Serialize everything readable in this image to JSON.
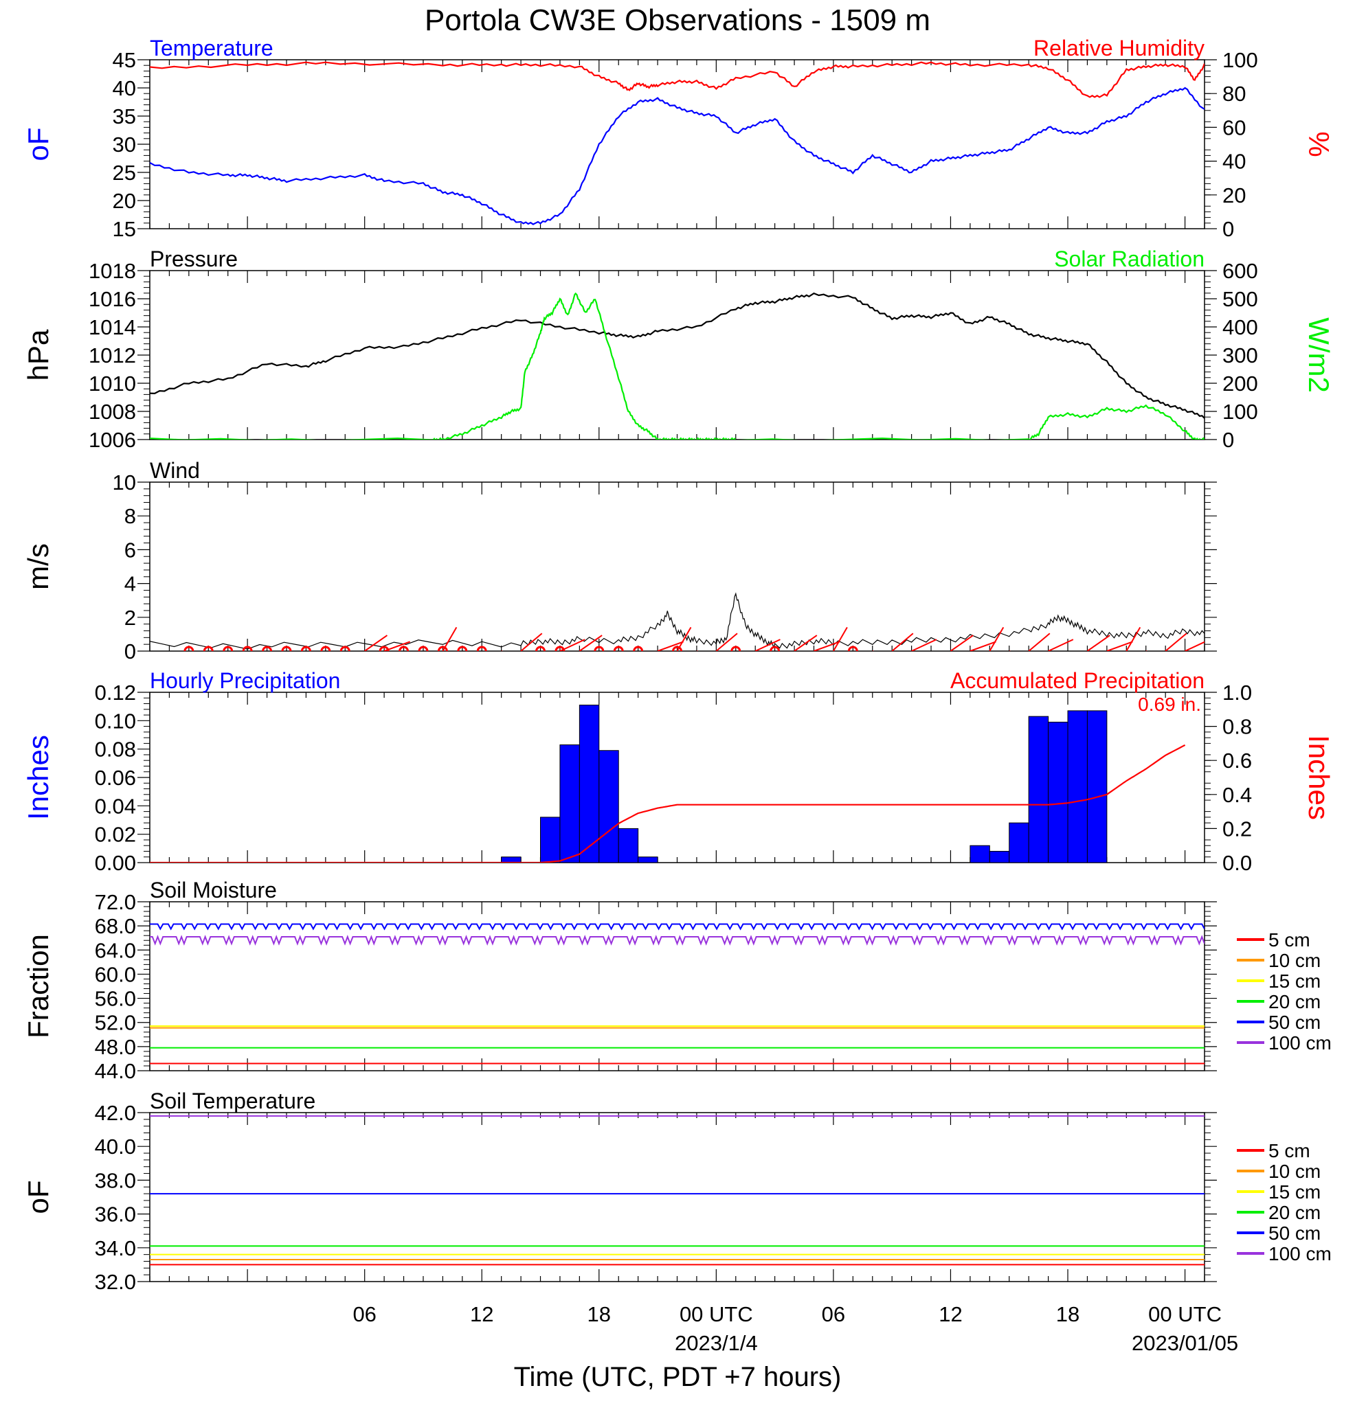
{
  "title": "Portola CW3E Observations - 1509 m",
  "xlabel": "Time (UTC, PDT +7 hours)",
  "x_ticks": [
    {
      "hour": 6,
      "label": "06"
    },
    {
      "hour": 12,
      "label": "12"
    },
    {
      "hour": 18,
      "label": "18"
    },
    {
      "hour": 24,
      "label": "00 UTC",
      "sub": "2023/1/4"
    },
    {
      "hour": 30,
      "label": "06"
    },
    {
      "hour": 36,
      "label": "12"
    },
    {
      "hour": 42,
      "label": "18"
    },
    {
      "hour": 48,
      "label": "00 UTC",
      "sub": "2023/01/05"
    }
  ],
  "colors": {
    "blue": "#0000ff",
    "red": "#ff0000",
    "green": "#00ee00",
    "black": "#000000",
    "orange": "#ff9900",
    "yellow": "#ffff00",
    "purple": "#9933dd"
  },
  "chart_data": [
    {
      "type": "line",
      "title_left": "Temperature",
      "title_right": "Relative Humidity",
      "ylabel_left": "oF",
      "ylabel_right": "%",
      "ylim_left": [
        15,
        45
      ],
      "ylim_right": [
        0,
        100
      ],
      "yticks_left": [
        "15",
        "20",
        "25",
        "30",
        "35",
        "40",
        "45"
      ],
      "yticks_right": [
        "0",
        "20",
        "40",
        "60",
        "80",
        "100"
      ],
      "x_range_hours": [
        -5,
        49
      ],
      "series": [
        {
          "name": "Temperature",
          "axis": "left",
          "color": "#0000ff",
          "x": [
            -5,
            -3,
            -1,
            0,
            1,
            2,
            4,
            6,
            7,
            9,
            10,
            11,
            12,
            13,
            14,
            15,
            16,
            17,
            18,
            19,
            20,
            21,
            22,
            23,
            24,
            25,
            26,
            27,
            28,
            29,
            30,
            31,
            32,
            33,
            34,
            35,
            36,
            37,
            38,
            39,
            40,
            41,
            42,
            43,
            44,
            45,
            46,
            47,
            48,
            49
          ],
          "y": [
            26.5,
            25,
            24.5,
            24.5,
            24,
            23.5,
            24,
            24.5,
            23.5,
            23,
            21.5,
            21,
            19.5,
            17.5,
            16,
            16,
            17.5,
            22,
            30,
            35,
            37.5,
            38,
            36.5,
            35.5,
            35,
            32,
            33.5,
            34.5,
            30.5,
            28,
            26.5,
            25,
            28,
            26.5,
            25,
            27,
            27.5,
            28,
            28.5,
            29,
            31,
            33,
            32,
            32,
            34,
            35,
            37.5,
            39,
            40,
            36
          ]
        },
        {
          "name": "Relative Humidity",
          "axis": "right",
          "color": "#ff0000",
          "x": [
            -5,
            0,
            4,
            10,
            13,
            15,
            17,
            18,
            19,
            19.5,
            20,
            20.5,
            21,
            22,
            23,
            24,
            25,
            27,
            28,
            29,
            30,
            31,
            33,
            35,
            37,
            40,
            41,
            42,
            43,
            44,
            45,
            46,
            47,
            48,
            48.5,
            49
          ],
          "y": [
            95,
            97,
            98,
            97,
            97,
            97,
            96,
            90,
            86,
            82,
            86,
            84,
            85,
            87,
            87,
            83,
            89,
            93,
            84,
            93,
            96,
            96,
            97,
            98,
            97,
            97,
            95,
            88,
            78,
            79,
            94,
            96,
            97,
            96,
            88,
            97
          ]
        }
      ]
    },
    {
      "type": "line",
      "title_left": "Pressure",
      "title_right": "Solar Radiation",
      "ylabel_left": "hPa",
      "ylabel_right": "W/m2",
      "ylim_left": [
        1006,
        1018
      ],
      "ylim_right": [
        0,
        600
      ],
      "yticks_left": [
        "1006",
        "1008",
        "1010",
        "1012",
        "1014",
        "1016",
        "1018"
      ],
      "yticks_right": [
        "0",
        "100",
        "200",
        "300",
        "400",
        "500",
        "600"
      ],
      "x_range_hours": [
        -5,
        49
      ],
      "series": [
        {
          "name": "Pressure",
          "axis": "left",
          "color": "#000000",
          "x": [
            -5,
            -3,
            -1,
            1,
            3,
            4,
            6,
            8,
            10,
            12,
            14,
            16,
            18,
            19,
            20,
            21,
            23,
            25,
            26,
            27,
            28,
            29,
            31,
            32,
            33,
            34,
            35,
            36,
            37,
            38,
            39,
            40,
            41,
            42,
            43,
            44,
            45,
            46,
            47,
            48,
            49
          ],
          "y": [
            1009.2,
            1010,
            1010.3,
            1011.4,
            1011.2,
            1011.6,
            1012.5,
            1012.6,
            1013.2,
            1013.9,
            1014.5,
            1014.0,
            1013.6,
            1013.4,
            1013.3,
            1013.7,
            1014,
            1015.3,
            1015.7,
            1015.8,
            1016.1,
            1016.3,
            1016.1,
            1015.3,
            1014.6,
            1014.8,
            1014.7,
            1015,
            1014.2,
            1014.7,
            1014.2,
            1013.5,
            1013.2,
            1013.0,
            1012.8,
            1011.5,
            1010,
            1009,
            1008.5,
            1008.1,
            1007.6
          ]
        },
        {
          "name": "Solar Radiation",
          "axis": "right",
          "color": "#00ee00",
          "x": [
            -5,
            9.5,
            10,
            11,
            12,
            13,
            13.5,
            14,
            14.2,
            14.6,
            15,
            15.2,
            15.6,
            16,
            16.4,
            16.8,
            17.3,
            17.8,
            18.3,
            19,
            19.5,
            20,
            20.5,
            21,
            21.5,
            22,
            22.5,
            23,
            23.5,
            24,
            24.5,
            25,
            40,
            40.5,
            41,
            42,
            43,
            44,
            45,
            46,
            47,
            48,
            48.5,
            49
          ],
          "y": [
            0,
            0,
            0,
            20,
            50,
            80,
            100,
            110,
            240,
            300,
            380,
            430,
            450,
            500,
            440,
            520,
            450,
            500,
            380,
            220,
            100,
            50,
            30,
            0,
            0,
            0,
            0,
            0,
            0,
            0,
            0,
            0,
            0,
            20,
            80,
            90,
            80,
            110,
            100,
            120,
            90,
            30,
            0,
            0
          ]
        }
      ]
    },
    {
      "type": "line",
      "title_left": "Wind",
      "ylabel_left": "m/s",
      "ylim_left": [
        0,
        10
      ],
      "yticks_left": [
        "0",
        "2",
        "4",
        "6",
        "8",
        "10"
      ],
      "x_range_hours": [
        -5,
        49
      ],
      "series": [
        {
          "name": "Wind",
          "axis": "left",
          "color": "#000000",
          "x": [
            -5,
            0,
            5,
            10,
            14,
            15,
            16,
            17,
            19,
            20,
            21,
            21.5,
            22,
            22.5,
            23,
            24,
            24.5,
            25,
            25.5,
            26,
            26.5,
            27,
            28,
            29,
            30,
            32,
            34,
            36,
            38,
            40,
            41,
            41.5,
            42,
            42.5,
            43,
            44,
            45,
            46,
            47,
            48,
            49
          ],
          "y": [
            0.4,
            0.3,
            0.4,
            0.5,
            0.4,
            0.6,
            0.5,
            0.7,
            0.6,
            0.8,
            1.5,
            2.2,
            1.2,
            0.8,
            0.6,
            0.5,
            0.7,
            3.4,
            1.5,
            1.0,
            0.6,
            0.3,
            0.4,
            0.6,
            0.5,
            0.5,
            0.6,
            0.7,
            0.9,
            1.2,
            1.6,
            2.0,
            1.8,
            1.5,
            1.2,
            1.0,
            0.9,
            1.1,
            0.9,
            1.2,
            1.0
          ]
        }
      ],
      "calm_hours": [
        -3,
        -2,
        -1,
        0,
        1,
        2,
        3,
        4,
        5,
        7,
        8,
        9,
        10,
        11,
        12,
        15,
        16,
        18,
        19,
        20,
        22,
        25,
        27,
        31
      ],
      "barb_hours": [
        6,
        7,
        10,
        13,
        14,
        16,
        17,
        21,
        22,
        23,
        24,
        26,
        28,
        29,
        30,
        32,
        33,
        34,
        36,
        37,
        38,
        39,
        40,
        41,
        43,
        44,
        45,
        46,
        47,
        48
      ]
    },
    {
      "type": "bar",
      "title_left": "Hourly Precipitation",
      "title_right": "Accumulated Precipitation",
      "ylabel_left": "Inches",
      "ylabel_right": "Inches",
      "ylim_left": [
        0,
        0.12
      ],
      "ylim_right": [
        0,
        1.0
      ],
      "yticks_left": [
        "0.00",
        "0.02",
        "0.04",
        "0.06",
        "0.08",
        "0.10",
        "0.12"
      ],
      "yticks_right": [
        "0.0",
        "0.2",
        "0.4",
        "0.6",
        "0.8",
        "1.0"
      ],
      "annotation": "0.69 in.",
      "x_range_hours": [
        -5,
        49
      ],
      "bars": {
        "color": "#0000ff",
        "start_hours": [
          13,
          15,
          16,
          17,
          18,
          19,
          20,
          37,
          38,
          39,
          40,
          41,
          42,
          43
        ],
        "values": [
          0.004,
          0.032,
          0.083,
          0.111,
          0.079,
          0.024,
          0.004,
          0.012,
          0.008,
          0.028,
          0.103,
          0.099,
          0.107,
          0.107
        ]
      },
      "series": [
        {
          "name": "Accumulated Precipitation",
          "axis": "right",
          "color": "#ff0000",
          "x": [
            -5,
            13,
            15,
            16,
            17,
            18,
            19,
            20,
            21,
            21.5,
            22,
            23,
            24,
            25,
            26,
            30,
            35,
            40,
            41,
            42,
            43,
            44,
            45,
            46,
            47,
            48
          ],
          "y": [
            0,
            0,
            0,
            0.01,
            0.05,
            0.14,
            0.23,
            0.29,
            0.32,
            0.33,
            0.34,
            0.34,
            0.34,
            0.34,
            0.34,
            0.34,
            0.34,
            0.34,
            0.34,
            0.35,
            0.37,
            0.4,
            0.48,
            0.55,
            0.63,
            0.69
          ]
        }
      ]
    },
    {
      "type": "line",
      "title_left": "Soil Moisture",
      "ylabel_left": "Fraction",
      "ylim_left": [
        44,
        72
      ],
      "yticks_left": [
        "44.0",
        "48.0",
        "52.0",
        "56.0",
        "60.0",
        "64.0",
        "68.0",
        "72.0"
      ],
      "x_range_hours": [
        -5,
        49
      ],
      "legend": [
        "5 cm",
        "10 cm",
        "15 cm",
        "20 cm",
        "50 cm",
        "100 cm"
      ],
      "series": [
        {
          "name": "5 cm",
          "color": "#ff0000",
          "level": 45.2
        },
        {
          "name": "10 cm",
          "color": "#ff9900",
          "level": 51.1
        },
        {
          "name": "15 cm",
          "color": "#ffff00",
          "level": 51.4
        },
        {
          "name": "20 cm",
          "color": "#00ee00",
          "level": 47.8
        },
        {
          "name": "50 cm",
          "color": "#0000ff",
          "level": 68.3
        },
        {
          "name": "100 cm",
          "color": "#9933dd",
          "level": 66.2
        }
      ]
    },
    {
      "type": "line",
      "title_left": "Soil Temperature",
      "ylabel_left": "oF",
      "ylim_left": [
        32,
        42
      ],
      "yticks_left": [
        "32.0",
        "34.0",
        "36.0",
        "38.0",
        "40.0",
        "42.0"
      ],
      "x_range_hours": [
        -5,
        49
      ],
      "legend": [
        "5 cm",
        "10 cm",
        "15 cm",
        "20 cm",
        "50 cm",
        "100 cm"
      ],
      "series": [
        {
          "name": "5 cm",
          "color": "#ff0000",
          "level": 33.0
        },
        {
          "name": "10 cm",
          "color": "#ff9900",
          "level": 33.3
        },
        {
          "name": "15 cm",
          "color": "#ffff00",
          "level": 33.6
        },
        {
          "name": "20 cm",
          "color": "#00ee00",
          "level": 34.1
        },
        {
          "name": "50 cm",
          "color": "#0000ff",
          "level": 37.2
        },
        {
          "name": "100 cm",
          "color": "#9933dd",
          "level": 41.8
        }
      ]
    }
  ]
}
